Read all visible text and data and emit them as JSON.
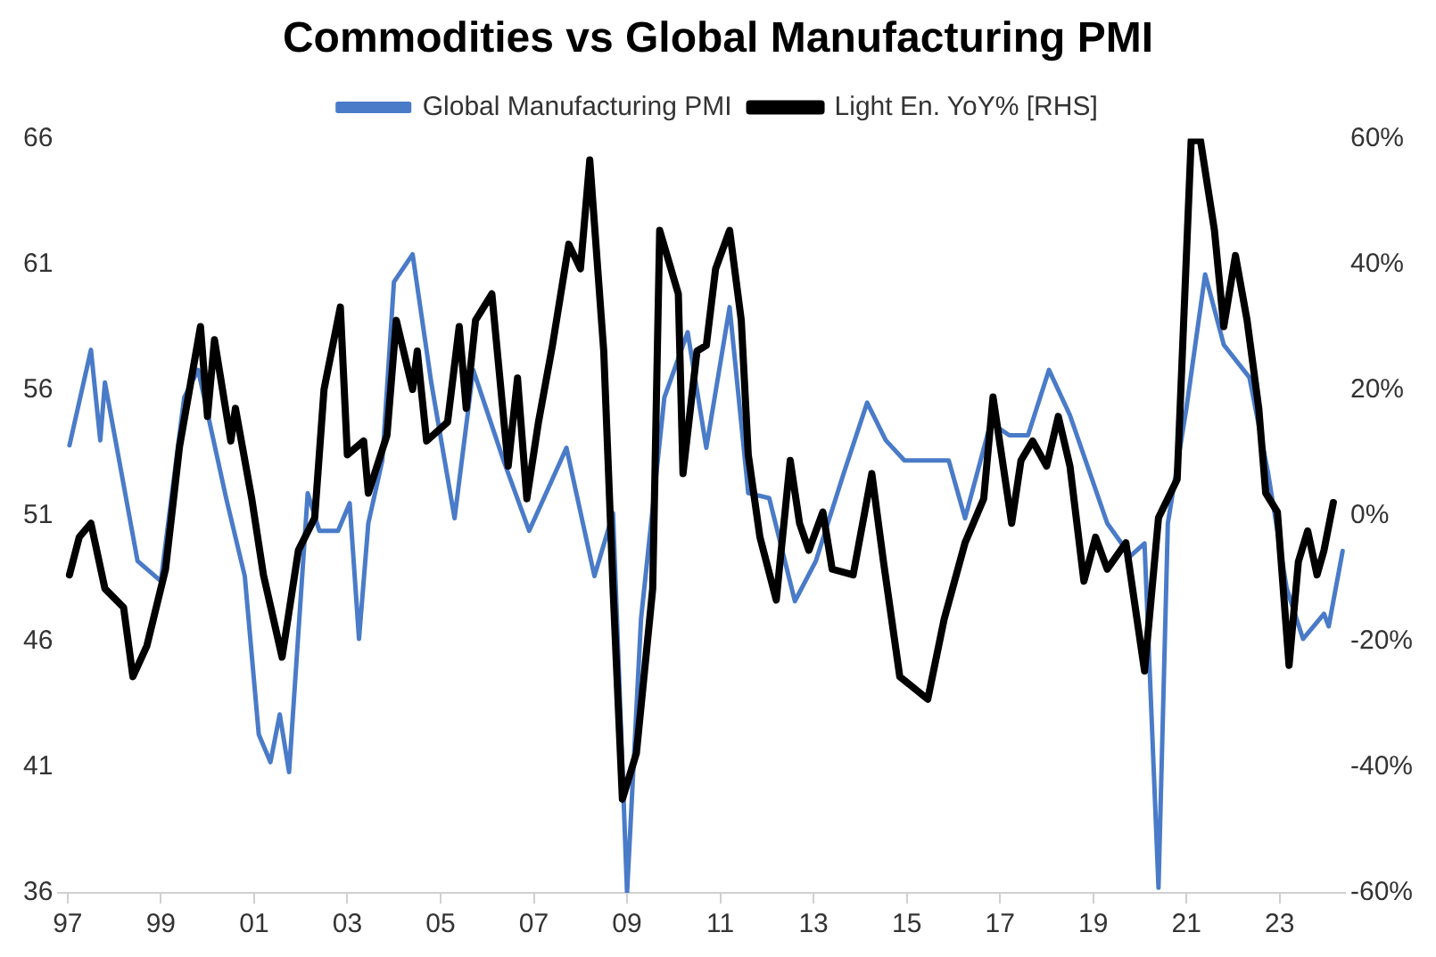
{
  "chart_data": {
    "type": "line",
    "title": "Commodities vs Global Manufacturing PMI",
    "legend": "top",
    "grid": false,
    "marker": "none",
    "line_style": "solid",
    "xlim": [
      1996.8,
      2024.4
    ],
    "xticks": [
      {
        "value": 1997,
        "label": "97"
      },
      {
        "value": 1999,
        "label": "99"
      },
      {
        "value": 2001,
        "label": "01"
      },
      {
        "value": 2003,
        "label": "03"
      },
      {
        "value": 2005,
        "label": "05"
      },
      {
        "value": 2007,
        "label": "07"
      },
      {
        "value": 2009,
        "label": "09"
      },
      {
        "value": 2011,
        "label": "11"
      },
      {
        "value": 2013,
        "label": "13"
      },
      {
        "value": 2015,
        "label": "15"
      },
      {
        "value": 2017,
        "label": "17"
      },
      {
        "value": 2019,
        "label": "19"
      },
      {
        "value": 2021,
        "label": "21"
      },
      {
        "value": 2023,
        "label": "23"
      }
    ],
    "ylim": [
      36,
      66
    ],
    "yticks": [
      36,
      41,
      46,
      51,
      56,
      61,
      66
    ],
    "y2lim": [
      -60,
      60
    ],
    "y2ticks": [
      {
        "value": -60,
        "label": "-60%"
      },
      {
        "value": -40,
        "label": "-40%"
      },
      {
        "value": -20,
        "label": "-20%"
      },
      {
        "value": 0,
        "label": "0%"
      },
      {
        "value": 20,
        "label": "20%"
      },
      {
        "value": 40,
        "label": "40%"
      },
      {
        "value": 60,
        "label": "60%"
      }
    ],
    "series": [
      {
        "name": "Global Manufacturing PMI",
        "color": "#4a7bc8",
        "x": [
          1997.04,
          1997.5,
          1997.7,
          1997.8,
          1998.5,
          1999.0,
          1999.5,
          1999.8,
          2000.4,
          2000.8,
          2001.1,
          2001.35,
          2001.55,
          2001.75,
          2002.15,
          2002.4,
          2002.8,
          2003.05,
          2003.25,
          2003.45,
          2003.75,
          2004.0,
          2004.4,
          2004.8,
          2005.3,
          2005.7,
          2006.35,
          2006.9,
          2007.7,
          2008.3,
          2008.7,
          2009.0,
          2009.3,
          2009.8,
          2010.3,
          2010.7,
          2011.2,
          2011.6,
          2012.05,
          2012.6,
          2013.05,
          2013.65,
          2014.15,
          2014.55,
          2014.95,
          2015.9,
          2016.25,
          2016.8,
          2017.2,
          2017.6,
          2018.05,
          2018.5,
          2019.3,
          2019.8,
          2020.1,
          2020.4,
          2020.6,
          2021.0,
          2021.4,
          2021.8,
          2022.35,
          2022.75,
          2023.15,
          2023.5,
          2023.95,
          2024.05,
          2024.35
        ],
        "values": [
          53.8,
          57.6,
          54.0,
          56.3,
          49.2,
          48.4,
          55.7,
          56.8,
          51.7,
          48.6,
          42.3,
          41.2,
          43.1,
          40.8,
          51.9,
          50.4,
          50.4,
          51.5,
          46.1,
          50.7,
          53.2,
          60.3,
          61.4,
          56.3,
          50.9,
          56.8,
          53.2,
          50.4,
          53.7,
          48.6,
          51.1,
          36.0,
          46.9,
          55.7,
          58.3,
          53.7,
          59.3,
          51.9,
          51.7,
          47.6,
          49.2,
          52.7,
          55.5,
          54.0,
          53.2,
          53.2,
          50.9,
          54.7,
          54.2,
          54.2,
          56.8,
          55.0,
          50.7,
          49.4,
          49.9,
          36.2,
          50.7,
          55.3,
          60.6,
          57.8,
          56.5,
          52.7,
          48.1,
          46.1,
          47.1,
          46.6,
          49.6
        ]
      },
      {
        "name": "Light En. YoY% [RHS]",
        "color": "#000000",
        "axis": "y2",
        "x": [
          1997.04,
          1997.25,
          1997.5,
          1997.8,
          1998.2,
          1998.4,
          1998.7,
          1999.1,
          1999.4,
          1999.85,
          2000.0,
          2000.15,
          2000.5,
          2000.6,
          2000.95,
          2001.2,
          2001.6,
          2001.95,
          2002.3,
          2002.5,
          2002.85,
          2003.0,
          2003.35,
          2003.45,
          2003.85,
          2004.05,
          2004.4,
          2004.5,
          2004.7,
          2005.15,
          2005.4,
          2005.55,
          2005.75,
          2006.1,
          2006.45,
          2006.65,
          2006.85,
          2007.1,
          2007.4,
          2007.75,
          2008.0,
          2008.2,
          2008.5,
          2008.7,
          2008.9,
          2009.2,
          2009.55,
          2009.7,
          2010.1,
          2010.2,
          2010.5,
          2010.7,
          2010.9,
          2011.2,
          2011.45,
          2011.6,
          2011.85,
          2012.2,
          2012.5,
          2012.7,
          2012.9,
          2013.2,
          2013.4,
          2013.85,
          2014.25,
          2014.5,
          2014.85,
          2015.45,
          2015.8,
          2016.25,
          2016.65,
          2016.85,
          2017.25,
          2017.45,
          2017.7,
          2018.0,
          2018.25,
          2018.5,
          2018.8,
          2019.05,
          2019.3,
          2019.7,
          2020.1,
          2020.4,
          2020.8,
          2021.1,
          2021.3,
          2021.6,
          2021.8,
          2022.05,
          2022.3,
          2022.55,
          2022.7,
          2022.95,
          2023.2,
          2023.4,
          2023.6,
          2023.8,
          2023.95,
          2024.15
        ],
        "values": [
          -9.4,
          -3.4,
          -1.2,
          -11.6,
          -14.6,
          -25.6,
          -20.7,
          -8.5,
          11.0,
          30.1,
          15.8,
          28.0,
          11.9,
          17.1,
          2.7,
          -9.4,
          -22.5,
          -5.5,
          -0.3,
          20.1,
          33.2,
          9.7,
          11.9,
          3.6,
          12.8,
          31.1,
          20.1,
          26.2,
          11.9,
          14.9,
          30.1,
          17.1,
          31.1,
          35.3,
          7.9,
          21.9,
          2.7,
          14.9,
          27.1,
          43.2,
          39.3,
          56.6,
          26.2,
          -11.6,
          -45.1,
          -37.8,
          -11.6,
          45.4,
          35.3,
          6.7,
          26.2,
          27.1,
          39.3,
          45.4,
          31.1,
          9.7,
          -3.4,
          -13.4,
          8.8,
          -1.2,
          -5.5,
          0.6,
          -8.5,
          -9.4,
          6.7,
          -7.3,
          -25.6,
          -29.2,
          -16.5,
          -4.3,
          2.7,
          18.9,
          -1.2,
          8.8,
          11.9,
          7.9,
          15.8,
          7.9,
          -10.4,
          -3.4,
          -8.5,
          -4.3,
          -24.7,
          -0.3,
          5.8,
          59.7,
          59.7,
          45.4,
          30.1,
          41.4,
          31.1,
          17.1,
          3.6,
          0.6,
          -23.8,
          -7.3,
          -2.4,
          -9.4,
          -5.5,
          2.1
        ]
      }
    ]
  }
}
